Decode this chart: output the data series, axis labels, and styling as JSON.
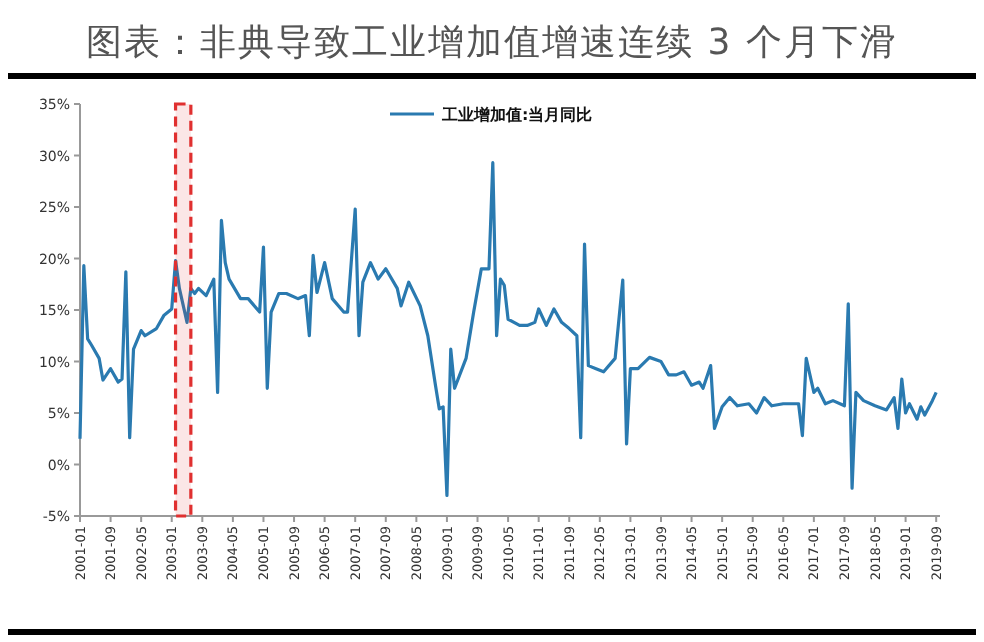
{
  "chart_data": {
    "type": "line",
    "title": "图表：非典导致工业增加值增速连续 3 个月下滑",
    "x": [
      "2001-01",
      "2001-02",
      "2001-03",
      "2001-04",
      "2001-06",
      "2001-07",
      "2001-09",
      "2001-11",
      "2001-12",
      "2002-01",
      "2002-02",
      "2002-03",
      "2002-05",
      "2002-06",
      "2002-09",
      "2002-11",
      "2003-01",
      "2003-02",
      "2003-03",
      "2003-05",
      "2003-06",
      "2003-07",
      "2003-08",
      "2003-10",
      "2003-12",
      "2004-01",
      "2004-02",
      "2004-03",
      "2004-04",
      "2004-07",
      "2004-09",
      "2004-12",
      "2005-01",
      "2005-02",
      "2005-03",
      "2005-05",
      "2005-07",
      "2005-10",
      "2005-12",
      "2006-01",
      "2006-02",
      "2006-03",
      "2006-05",
      "2006-07",
      "2006-10",
      "2006-11",
      "2007-01",
      "2007-02",
      "2007-03",
      "2007-05",
      "2007-07",
      "2007-09",
      "2007-12",
      "2008-01",
      "2008-03",
      "2008-06",
      "2008-08",
      "2008-10",
      "2008-11",
      "2008-12",
      "2009-01",
      "2009-02",
      "2009-03",
      "2009-06",
      "2009-08",
      "2009-10",
      "2009-12",
      "2010-01",
      "2010-02",
      "2010-03",
      "2010-04",
      "2010-05",
      "2010-08",
      "2010-10",
      "2010-12",
      "2011-01",
      "2011-03",
      "2011-05",
      "2011-07",
      "2011-09",
      "2011-11",
      "2011-12",
      "2012-01",
      "2012-02",
      "2012-04",
      "2012-06",
      "2012-09",
      "2012-11",
      "2012-12",
      "2013-01",
      "2013-03",
      "2013-06",
      "2013-09",
      "2013-11",
      "2014-01",
      "2014-03",
      "2014-05",
      "2014-07",
      "2014-08",
      "2014-10",
      "2014-11",
      "2015-01",
      "2015-03",
      "2015-05",
      "2015-08",
      "2015-10",
      "2015-12",
      "2016-02",
      "2016-05",
      "2016-09",
      "2016-10",
      "2016-11",
      "2017-01",
      "2017-02",
      "2017-04",
      "2017-06",
      "2017-09",
      "2017-10",
      "2017-11",
      "2017-12",
      "2018-02",
      "2018-05",
      "2018-08",
      "2018-10",
      "2018-11",
      "2018-12",
      "2019-01",
      "2019-02",
      "2019-04",
      "2019-05",
      "2019-06",
      "2019-08",
      "2019-09"
    ],
    "series": [
      {
        "name": "工业增加值:当月同比",
        "color": "#2a7ab0",
        "values": [
          2.5,
          19.3,
          12.2,
          11.6,
          10.3,
          8.2,
          9.3,
          8.0,
          8.3,
          18.7,
          2.6,
          11.2,
          13.0,
          12.5,
          13.2,
          14.5,
          15.1,
          19.8,
          17.1,
          13.8,
          17.1,
          16.6,
          17.1,
          16.4,
          18.0,
          7.0,
          23.7,
          19.6,
          18.0,
          16.1,
          16.1,
          14.8,
          21.1,
          7.4,
          14.8,
          16.6,
          16.6,
          16.1,
          16.4,
          12.5,
          20.3,
          16.7,
          19.6,
          16.1,
          14.8,
          14.8,
          24.8,
          12.5,
          17.7,
          19.6,
          18.0,
          19.0,
          17.1,
          15.4,
          17.7,
          15.4,
          12.5,
          7.7,
          5.4,
          5.6,
          -3.0,
          11.2,
          7.4,
          10.3,
          14.8,
          19.0,
          19.0,
          29.3,
          12.5,
          18.0,
          17.4,
          14.1,
          13.5,
          13.5,
          13.8,
          15.1,
          13.5,
          15.1,
          13.8,
          13.2,
          12.5,
          2.6,
          21.4,
          9.6,
          9.3,
          9.0,
          10.3,
          17.9,
          2.0,
          9.3,
          9.3,
          10.4,
          10.0,
          8.7,
          8.7,
          9.0,
          7.7,
          8.0,
          7.4,
          9.6,
          3.5,
          5.6,
          6.5,
          5.7,
          5.9,
          5.0,
          6.5,
          5.7,
          5.9,
          5.9,
          2.8,
          10.3,
          7.0,
          7.4,
          5.9,
          6.2,
          5.7,
          15.6,
          -2.3,
          7.0,
          6.2,
          5.7,
          5.3,
          6.5,
          3.5,
          8.3,
          5.0,
          5.9,
          4.4,
          5.6,
          4.8,
          6.2,
          7.0
        ]
      }
    ],
    "xlim": [
      "2001-01",
      "2019-10"
    ],
    "xticks": [
      "2001-01",
      "2001-09",
      "2002-05",
      "2003-01",
      "2003-09",
      "2004-05",
      "2005-01",
      "2005-09",
      "2006-05",
      "2007-01",
      "2007-09",
      "2008-05",
      "2009-01",
      "2009-09",
      "2010-05",
      "2011-01",
      "2011-09",
      "2012-05",
      "2013-01",
      "2013-09",
      "2014-05",
      "2015-01",
      "2015-09",
      "2016-05",
      "2017-01",
      "2017-09",
      "2018-05",
      "2019-01",
      "2019-09"
    ],
    "ylim": [
      -5,
      35
    ],
    "yticks": [
      {
        "value": -5,
        "label": "-5%"
      },
      {
        "value": 0,
        "label": "0%"
      },
      {
        "value": 5,
        "label": "5%"
      },
      {
        "value": 10,
        "label": "10%"
      },
      {
        "value": 15,
        "label": "15%"
      },
      {
        "value": 20,
        "label": "20%"
      },
      {
        "value": 25,
        "label": "25%"
      },
      {
        "value": 30,
        "label": "30%"
      },
      {
        "value": 35,
        "label": "35%"
      }
    ],
    "bands": [
      {
        "axis": "x",
        "from": "2003-02",
        "to": "2003-06",
        "color": "#e03030"
      }
    ],
    "legend": "top"
  }
}
